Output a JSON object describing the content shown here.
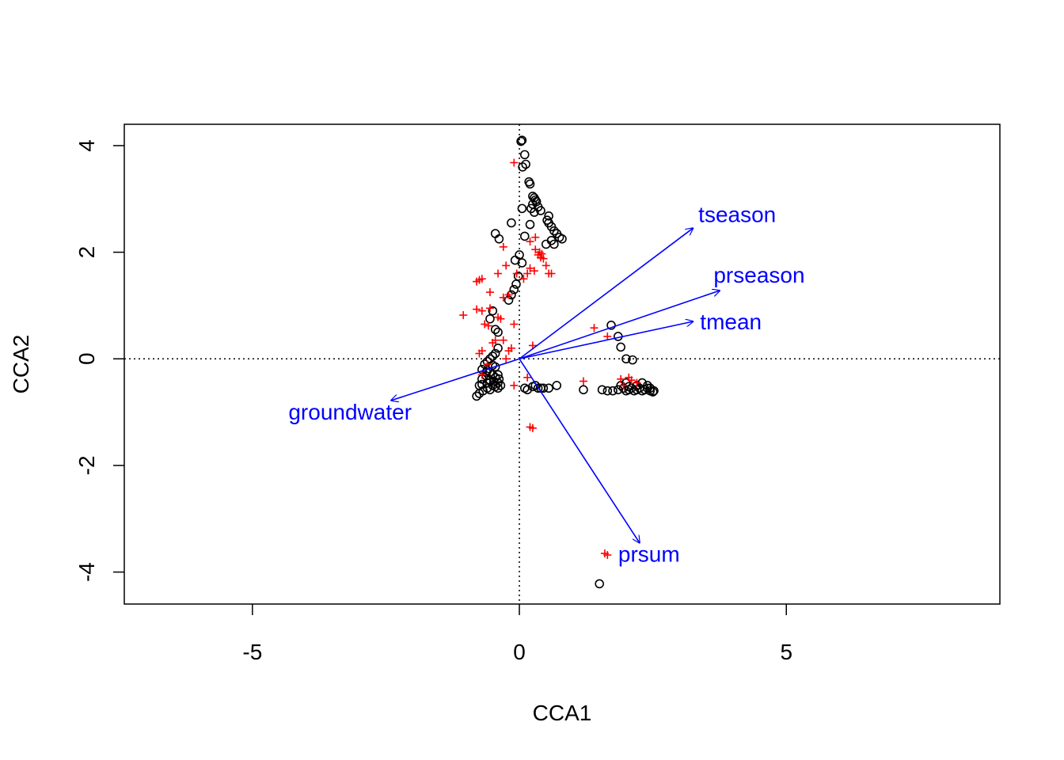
{
  "chart_data": {
    "type": "scatter",
    "title": "",
    "xlabel": "CCA1",
    "ylabel": "CCA2",
    "xlim": [
      -7.4,
      9.0
    ],
    "ylim": [
      -4.6,
      4.4
    ],
    "x_ticks": [
      -5,
      0,
      5
    ],
    "x_tick_labels": [
      "-5",
      "0",
      "5"
    ],
    "y_ticks": [
      -4,
      -2,
      0,
      2,
      4
    ],
    "y_tick_labels": [
      "-4",
      "-2",
      "0",
      "2",
      "4"
    ],
    "reference_lines": {
      "x": 0,
      "y": 0,
      "style": "dotted"
    },
    "grid": false,
    "legend": "none",
    "colors": {
      "sites": "#000000",
      "species": "#ff0000",
      "biplot": "#0000ff"
    },
    "sites": [
      [
        0.05,
        4.1
      ],
      [
        0.03,
        4.08
      ],
      [
        0.1,
        3.83
      ],
      [
        0.12,
        3.65
      ],
      [
        0.06,
        3.6
      ],
      [
        0.18,
        3.32
      ],
      [
        0.2,
        3.28
      ],
      [
        0.25,
        3.05
      ],
      [
        0.28,
        3.02
      ],
      [
        0.3,
        2.98
      ],
      [
        0.32,
        2.95
      ],
      [
        0.25,
        2.9
      ],
      [
        0.35,
        2.85
      ],
      [
        0.22,
        2.82
      ],
      [
        0.4,
        2.78
      ],
      [
        0.28,
        2.75
      ],
      [
        0.05,
        2.82
      ],
      [
        0.55,
        2.68
      ],
      [
        0.52,
        2.6
      ],
      [
        0.55,
        2.55
      ],
      [
        0.6,
        2.48
      ],
      [
        0.2,
        2.52
      ],
      [
        -0.15,
        2.55
      ],
      [
        0.65,
        2.4
      ],
      [
        0.7,
        2.35
      ],
      [
        0.75,
        2.28
      ],
      [
        0.8,
        2.25
      ],
      [
        0.6,
        2.22
      ],
      [
        0.65,
        2.15
      ],
      [
        0.5,
        2.15
      ],
      [
        0.1,
        2.3
      ],
      [
        -0.45,
        2.35
      ],
      [
        -0.38,
        2.25
      ],
      [
        0.0,
        1.95
      ],
      [
        0.05,
        1.8
      ],
      [
        -0.08,
        1.85
      ],
      [
        -0.02,
        1.55
      ],
      [
        -0.06,
        1.4
      ],
      [
        -0.1,
        1.3
      ],
      [
        -0.15,
        1.2
      ],
      [
        -0.2,
        1.1
      ],
      [
        -0.5,
        0.9
      ],
      [
        -0.55,
        0.75
      ],
      [
        -0.45,
        0.55
      ],
      [
        -0.4,
        0.5
      ],
      [
        -0.4,
        0.2
      ],
      [
        -0.45,
        0.1
      ],
      [
        -0.5,
        0.05
      ],
      [
        -0.55,
        0.0
      ],
      [
        -0.6,
        -0.05
      ],
      [
        -0.65,
        -0.1
      ],
      [
        -0.5,
        -0.12
      ],
      [
        -0.45,
        -0.15
      ],
      [
        -0.7,
        -0.2
      ],
      [
        -0.6,
        -0.22
      ],
      [
        -0.55,
        -0.25
      ],
      [
        -0.5,
        -0.3
      ],
      [
        -0.45,
        -0.35
      ],
      [
        -0.4,
        -0.3
      ],
      [
        -0.62,
        -0.32
      ],
      [
        -0.7,
        -0.38
      ],
      [
        -0.55,
        -0.4
      ],
      [
        -0.48,
        -0.42
      ],
      [
        -0.4,
        -0.45
      ],
      [
        -0.6,
        -0.45
      ],
      [
        -0.7,
        -0.48
      ],
      [
        -0.75,
        -0.5
      ],
      [
        -0.5,
        -0.5
      ],
      [
        -0.45,
        -0.52
      ],
      [
        -0.6,
        -0.55
      ],
      [
        -0.55,
        -0.58
      ],
      [
        -0.68,
        -0.6
      ],
      [
        -0.75,
        -0.65
      ],
      [
        -0.8,
        -0.7
      ],
      [
        -0.4,
        -0.55
      ],
      [
        -0.35,
        -0.5
      ],
      [
        -0.62,
        -0.25
      ],
      [
        -0.38,
        -0.38
      ],
      [
        0.1,
        -0.55
      ],
      [
        0.15,
        -0.58
      ],
      [
        0.3,
        -0.5
      ],
      [
        0.35,
        -0.55
      ],
      [
        0.45,
        -0.55
      ],
      [
        0.55,
        -0.55
      ],
      [
        0.7,
        -0.5
      ],
      [
        0.4,
        -0.55
      ],
      [
        0.25,
        -0.52
      ],
      [
        1.2,
        -0.58
      ],
      [
        1.55,
        -0.58
      ],
      [
        1.65,
        -0.6
      ],
      [
        1.75,
        -0.6
      ],
      [
        1.85,
        -0.58
      ],
      [
        1.95,
        -0.55
      ],
      [
        2.0,
        -0.6
      ],
      [
        2.05,
        -0.58
      ],
      [
        2.1,
        -0.55
      ],
      [
        2.15,
        -0.6
      ],
      [
        2.2,
        -0.58
      ],
      [
        2.25,
        -0.55
      ],
      [
        2.3,
        -0.6
      ],
      [
        2.35,
        -0.58
      ],
      [
        2.4,
        -0.55
      ],
      [
        2.45,
        -0.6
      ],
      [
        2.5,
        -0.62
      ],
      [
        2.52,
        -0.6
      ],
      [
        1.9,
        -0.5
      ],
      [
        2.0,
        -0.45
      ],
      [
        2.3,
        -0.45
      ],
      [
        2.4,
        -0.5
      ],
      [
        2.45,
        -0.55
      ],
      [
        1.72,
        0.63
      ],
      [
        1.85,
        0.42
      ],
      [
        1.9,
        0.22
      ],
      [
        2.0,
        0.0
      ],
      [
        2.12,
        -0.02
      ],
      [
        2.05,
        -0.52
      ],
      [
        2.2,
        -0.5
      ],
      [
        1.5,
        -4.22
      ]
    ],
    "species": [
      [
        -0.1,
        3.68
      ],
      [
        -0.3,
        2.1
      ],
      [
        -0.25,
        1.75
      ],
      [
        -0.4,
        1.6
      ],
      [
        -0.75,
        1.48
      ],
      [
        -0.8,
        1.45
      ],
      [
        -0.7,
        1.5
      ],
      [
        -0.55,
        1.25
      ],
      [
        -0.3,
        1.15
      ],
      [
        -0.2,
        1.2
      ],
      [
        0.2,
        2.2
      ],
      [
        0.3,
        2.05
      ],
      [
        0.35,
        1.95
      ],
      [
        0.4,
        1.9
      ],
      [
        0.45,
        1.88
      ],
      [
        0.3,
        2.28
      ],
      [
        0.5,
        1.75
      ],
      [
        0.55,
        1.6
      ],
      [
        0.6,
        1.6
      ],
      [
        0.2,
        1.7
      ],
      [
        0.15,
        1.6
      ],
      [
        0.38,
        2.0
      ],
      [
        0.42,
        1.97
      ],
      [
        0.28,
        1.65
      ],
      [
        0.08,
        1.5
      ],
      [
        -0.05,
        1.6
      ],
      [
        -1.05,
        0.82
      ],
      [
        -0.8,
        0.93
      ],
      [
        -0.7,
        0.9
      ],
      [
        -0.55,
        0.95
      ],
      [
        -0.4,
        0.78
      ],
      [
        -0.35,
        0.75
      ],
      [
        -0.65,
        0.65
      ],
      [
        -0.58,
        0.62
      ],
      [
        -0.1,
        0.65
      ],
      [
        -0.3,
        0.35
      ],
      [
        -0.45,
        0.35
      ],
      [
        -0.7,
        0.15
      ],
      [
        -0.75,
        0.1
      ],
      [
        -0.5,
        0.3
      ],
      [
        -0.2,
        0.15
      ],
      [
        -0.15,
        0.2
      ],
      [
        -0.25,
        0.0
      ],
      [
        0.25,
        0.25
      ],
      [
        -0.6,
        -0.1
      ],
      [
        -0.7,
        -0.3
      ],
      [
        0.15,
        -0.35
      ],
      [
        -0.1,
        -0.5
      ],
      [
        0.2,
        -1.28
      ],
      [
        0.25,
        -1.3
      ],
      [
        1.2,
        -0.42
      ],
      [
        1.4,
        0.58
      ],
      [
        1.65,
        0.42
      ],
      [
        1.9,
        -0.38
      ],
      [
        2.05,
        -0.35
      ],
      [
        2.1,
        -0.4
      ],
      [
        2.2,
        -0.45
      ],
      [
        1.95,
        -0.5
      ],
      [
        1.6,
        -3.65
      ],
      [
        1.65,
        -3.68
      ]
    ],
    "biplot": [
      {
        "name": "tseason",
        "x": 3.25,
        "y": 2.45
      },
      {
        "name": "prseason",
        "x": 3.75,
        "y": 1.28
      },
      {
        "name": "tmean",
        "x": 3.25,
        "y": 0.7
      },
      {
        "name": "groundwater",
        "x": -2.4,
        "y": -0.78
      },
      {
        "name": "prsum",
        "x": 2.25,
        "y": -3.45
      }
    ]
  }
}
